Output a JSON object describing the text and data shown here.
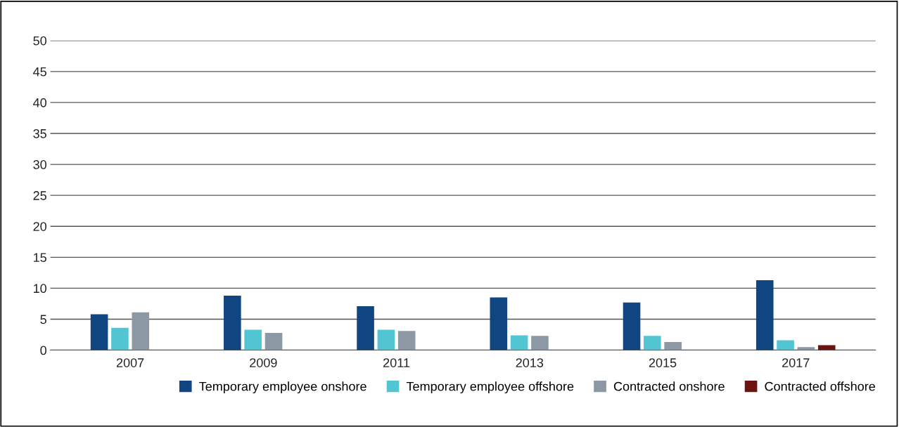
{
  "chart_data": {
    "type": "bar",
    "categories": [
      "2007",
      "2009",
      "2011",
      "2013",
      "2015",
      "2017"
    ],
    "series": [
      {
        "name": "Temporary employee onshore",
        "color": "#0f4580",
        "values": [
          5.8,
          8.8,
          7.1,
          8.5,
          7.7,
          11.3
        ]
      },
      {
        "name": "Temporary employee offshore",
        "color": "#52c5d3",
        "values": [
          3.6,
          3.3,
          3.3,
          2.4,
          2.3,
          1.6
        ]
      },
      {
        "name": "Contracted onshore",
        "color": "#8c98a4",
        "values": [
          6.1,
          2.8,
          3.1,
          2.3,
          1.3,
          0.5
        ]
      },
      {
        "name": "Contracted offshore",
        "color": "#6e1410",
        "values": [
          null,
          null,
          null,
          null,
          null,
          0.8
        ]
      }
    ],
    "ylim": [
      0,
      50
    ],
    "yticks": [
      0,
      5,
      10,
      15,
      20,
      25,
      30,
      35,
      40,
      45,
      50
    ],
    "grid": "y",
    "legend": "bottom"
  }
}
